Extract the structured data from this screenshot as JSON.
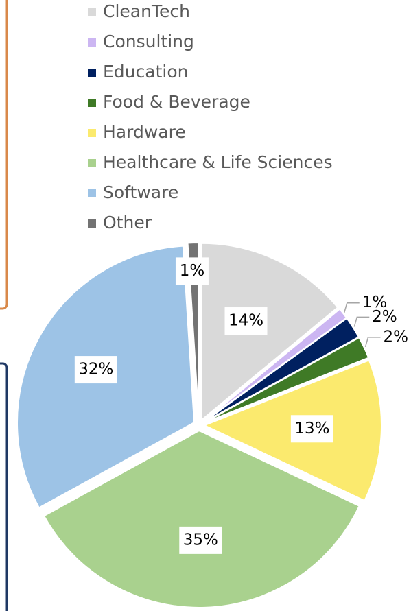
{
  "chart_data": {
    "type": "pie",
    "categories": [
      "CleanTech",
      "Consulting",
      "Education",
      "Food & Beverage",
      "Hardware",
      "Healthcare & Life Sciences",
      "Software",
      "Other"
    ],
    "values": [
      14,
      1,
      2,
      2,
      13,
      35,
      32,
      1
    ],
    "value_labels": [
      "14%",
      "1%",
      "2%",
      "2%",
      "13%",
      "35%",
      "32%",
      "1%"
    ],
    "colors": [
      "#d9d9d9",
      "#ccb6f2",
      "#002060",
      "#3f7a26",
      "#fbea6e",
      "#a9d18e",
      "#9dc3e6",
      "#737373"
    ],
    "legend": "top"
  }
}
